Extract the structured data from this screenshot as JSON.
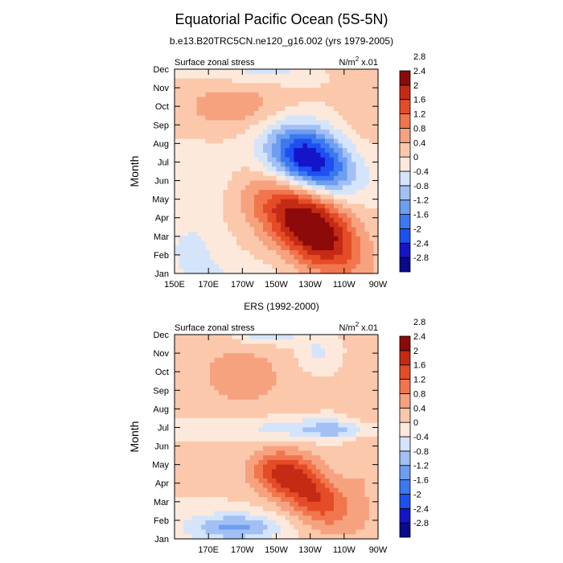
{
  "figure": {
    "title": "Equatorial Pacific Ocean (5S-5N)",
    "subtitle": "b.e13.B20TRC5CN.ne120_g16.002 (yrs 1979-2005)",
    "second_panel_title": "ERS (1992-2000)"
  },
  "colorbar": {
    "colors": [
      "#0a0a8c",
      "#1414c8",
      "#1e50f0",
      "#3c78f0",
      "#6e9ef0",
      "#a2c0f4",
      "#d4e4fa",
      "#fde9dc",
      "#fbc8ac",
      "#f7a27f",
      "#f1764e",
      "#e44c27",
      "#c42a14",
      "#8c0a0a"
    ],
    "labels": [
      "-2.8",
      "-2.4",
      "-2",
      "-1.6",
      "-1.2",
      "-0.8",
      "-0.4",
      "0",
      "0.4",
      "0.8",
      "1.2",
      "1.6",
      "2",
      "2.4",
      "2.8"
    ]
  },
  "chart_data": [
    {
      "type": "heatmap",
      "title": "b.e13.B20TRC5CN.ne120_g16.002 (yrs 1979-2005)",
      "left_label": "Surface zonal stress",
      "right_label_main": "N/m",
      "right_label_sup": "2",
      "right_label_tail": " x.01",
      "ylabel": "Month",
      "xlabel": "",
      "y_ticks": [
        "Jan",
        "Feb",
        "Mar",
        "Apr",
        "May",
        "Jun",
        "Jul",
        "Aug",
        "Sep",
        "Oct",
        "Nov",
        "Dec"
      ],
      "x_ticks": [
        "150E",
        "170E",
        "170W",
        "150W",
        "130W",
        "110W",
        "90W"
      ],
      "x_tick_lons": [
        150,
        170,
        190,
        210,
        230,
        250,
        270
      ],
      "xlim": [
        150,
        270
      ],
      "levels": [
        -2.8,
        -2.4,
        -2,
        -1.6,
        -1.2,
        -0.8,
        -0.4,
        0,
        0.4,
        0.8,
        1.2,
        1.6,
        2,
        2.4,
        2.8
      ],
      "features": [
        {
          "lon": 236,
          "month": 3.0,
          "slon": 17,
          "smon": 1.4,
          "amp": 1.8,
          "tilt": -0.35
        },
        {
          "lon": 218,
          "month": 4.3,
          "slon": 20,
          "smon": 1.3,
          "amp": 1.3,
          "tilt": -0.3
        },
        {
          "lon": 230,
          "month": 6.8,
          "slon": 18,
          "smon": 1.0,
          "amp": -2.4,
          "tilt": -0.2
        },
        {
          "lon": 228,
          "month": 8.2,
          "slon": 16,
          "smon": 0.9,
          "amp": -1.1,
          "tilt": -0.2
        },
        {
          "lon": 185,
          "month": 10.0,
          "slon": 22,
          "smon": 0.9,
          "amp": 0.7,
          "tilt": 0
        },
        {
          "lon": 205,
          "month": 11.9,
          "slon": 25,
          "smon": 0.5,
          "amp": -0.5,
          "tilt": 0
        },
        {
          "lon": 160,
          "month": 2.3,
          "slon": 13,
          "smon": 1.3,
          "amp": -0.5,
          "tilt": 0
        },
        {
          "lon": 185,
          "month": 1.0,
          "slon": 18,
          "smon": 0.6,
          "amp": -0.3,
          "tilt": 0
        },
        {
          "lon": 262,
          "month": 10.5,
          "slon": 9,
          "smon": 1.8,
          "amp": 0.3,
          "tilt": 0
        },
        {
          "lon": 170,
          "month": 6.2,
          "slon": 16,
          "smon": 1.1,
          "amp": -0.3,
          "tilt": 0
        }
      ]
    },
    {
      "type": "heatmap",
      "title": "ERS (1992-2000)",
      "left_label": "Surface zonal stress",
      "right_label_main": "N/m",
      "right_label_sup": "2",
      "right_label_tail": " x.01",
      "ylabel": "Month",
      "xlabel": "",
      "y_ticks": [
        "Jan",
        "Feb",
        "Mar",
        "Apr",
        "May",
        "Jun",
        "Jul",
        "Aug",
        "Sep",
        "Oct",
        "Nov",
        "Dec"
      ],
      "x_ticks": [
        "170E",
        "170W",
        "150W",
        "130W",
        "110W",
        "90W"
      ],
      "x_tick_lons": [
        170,
        190,
        210,
        230,
        250,
        270
      ],
      "xlim": [
        150,
        270
      ],
      "levels": [
        -2.8,
        -2.4,
        -2,
        -1.6,
        -1.2,
        -0.8,
        -0.4,
        0,
        0.4,
        0.8,
        1.2,
        1.6,
        2,
        2.4,
        2.8
      ],
      "features": [
        {
          "lon": 232,
          "month": 3.3,
          "slon": 16,
          "smon": 1.1,
          "amp": 1.6,
          "tilt": -0.35
        },
        {
          "lon": 212,
          "month": 4.6,
          "slon": 13,
          "smon": 0.8,
          "amp": 1.2,
          "tilt": 0
        },
        {
          "lon": 220,
          "month": 7.0,
          "slon": 40,
          "smon": 0.45,
          "amp": -0.7,
          "tilt": 0
        },
        {
          "lon": 245,
          "month": 6.8,
          "slon": 14,
          "smon": 0.3,
          "amp": -0.6,
          "tilt": 0
        },
        {
          "lon": 185,
          "month": 1.6,
          "slon": 20,
          "smon": 0.55,
          "amp": -1.4,
          "tilt": 0
        },
        {
          "lon": 205,
          "month": 12.0,
          "slon": 13,
          "smon": 0.4,
          "amp": -1.0,
          "tilt": 0
        },
        {
          "lon": 233,
          "month": 11.0,
          "slon": 9,
          "smon": 0.8,
          "amp": -0.6,
          "tilt": 0
        },
        {
          "lon": 190,
          "month": 9.8,
          "slon": 30,
          "smon": 2.0,
          "amp": 0.5,
          "tilt": 0
        },
        {
          "lon": 262,
          "month": 6.0,
          "slon": 8,
          "smon": 3,
          "amp": 0.4,
          "tilt": 0
        }
      ]
    }
  ]
}
